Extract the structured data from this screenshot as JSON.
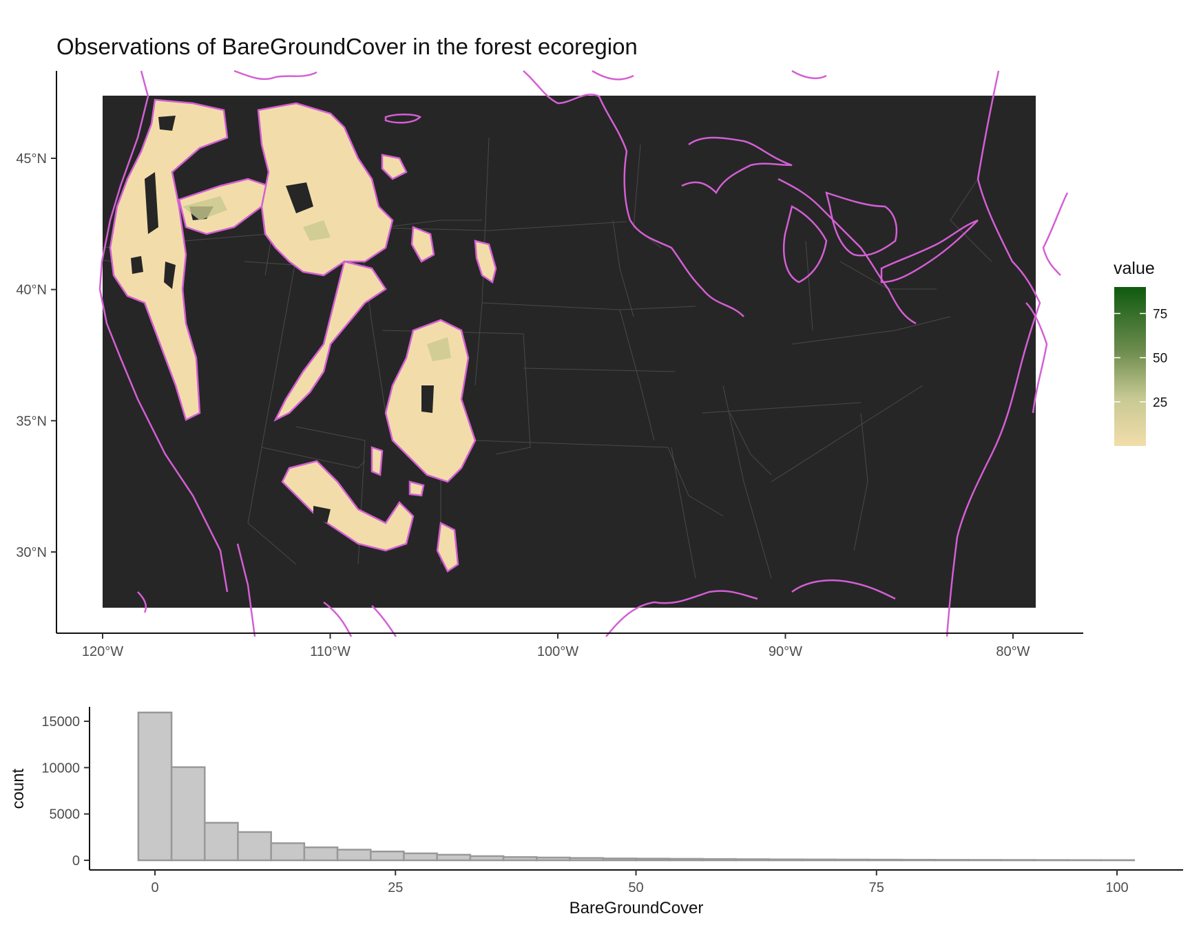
{
  "map_panel": {
    "title": "Observations of BareGroundCover in the forest ecoregion",
    "lon_ticks": [
      "120°W",
      "110°W",
      "100°W",
      "90°W",
      "80°W"
    ],
    "lon_values": [
      -120,
      -110,
      -100,
      -90,
      -80
    ],
    "lat_ticks": [
      "45°N",
      "40°N",
      "35°N",
      "30°N"
    ],
    "lat_values": [
      45,
      40,
      35,
      30
    ],
    "xlim": [
      -122,
      -77
    ],
    "ylim": [
      26.7,
      47.7
    ],
    "raster_extent": {
      "lon": [
        -120,
        -79
      ],
      "lat": [
        27.8,
        47.3
      ]
    },
    "background_color": "#262626",
    "state_line_color": "#4a4a4a",
    "ecoregion_outline_color": "#d45fd4",
    "low_value_color": "#f2ddaa",
    "high_value_color": "#0f5a0f",
    "legend": {
      "title": "value",
      "ticks": [
        "25",
        "50",
        "75"
      ],
      "tick_values": [
        25,
        50,
        75
      ],
      "range": [
        0,
        90
      ]
    }
  },
  "chart_data": {
    "type": "bar",
    "title": "",
    "xlabel": "BareGroundCover",
    "ylabel": "count",
    "xlim": [
      -5,
      105
    ],
    "ylim": [
      0,
      16500
    ],
    "x_ticks": [
      "0",
      "25",
      "50",
      "75",
      "100"
    ],
    "x_tick_values": [
      0,
      25,
      50,
      75,
      100
    ],
    "y_ticks": [
      "0",
      "5000",
      "10000",
      "15000"
    ],
    "y_tick_values": [
      0,
      5000,
      10000,
      15000
    ],
    "bin_width": 3.45,
    "bin_centers": [
      0,
      3.45,
      6.9,
      10.35,
      13.8,
      17.25,
      20.7,
      24.15,
      27.6,
      31.05,
      34.5,
      37.95,
      41.4,
      44.85,
      48.3,
      51.75,
      55.2,
      58.65,
      62.1,
      65.55,
      69.0,
      72.45,
      75.9,
      79.35,
      82.8,
      86.25,
      89.7,
      93.15,
      96.6,
      100.05
    ],
    "values": [
      15950,
      10050,
      4050,
      3050,
      1850,
      1400,
      1150,
      950,
      750,
      600,
      450,
      350,
      300,
      250,
      200,
      180,
      160,
      140,
      120,
      100,
      90,
      80,
      70,
      60,
      50,
      45,
      40,
      30,
      25,
      20
    ],
    "bar_fill": "#c8c8c8",
    "bar_stroke": "#999999"
  }
}
